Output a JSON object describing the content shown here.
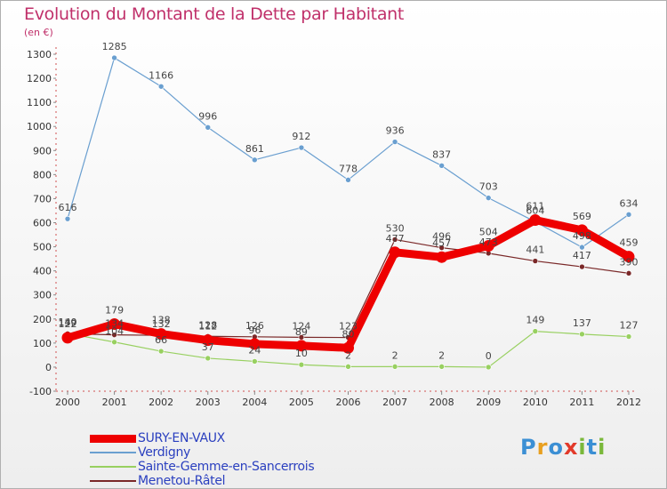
{
  "title": "Evolution du Montant de la Dette par Habitant",
  "unit_label": "(en €)",
  "logo": {
    "text": "Proxiti",
    "letters": [
      "P",
      "r",
      "o",
      "x",
      "i",
      "t",
      "i"
    ],
    "colors": [
      "#3b8fd4",
      "#e8a020",
      "#3b8fd4",
      "#e23a2a",
      "#7ab83a",
      "#3b8fd4",
      "#7ab83a"
    ]
  },
  "chart_data": {
    "type": "line",
    "title": "Evolution du Montant de la Dette par Habitant",
    "ylabel": "(en €)",
    "xlabel": "",
    "x": [
      "2000",
      "2001",
      "2002",
      "2003",
      "2004",
      "2005",
      "2006",
      "2007",
      "2008",
      "2009",
      "2010",
      "2011",
      "2012"
    ],
    "ylim": [
      -100,
      1300
    ],
    "yticks": [
      -100,
      0,
      100,
      200,
      300,
      400,
      500,
      600,
      700,
      800,
      900,
      1000,
      1100,
      1200,
      1300
    ],
    "grid": false,
    "legend_position": "bottom-left",
    "series": [
      {
        "name": "SURY-EN-VAUX",
        "color": "#ee0000",
        "width": 9,
        "values": [
          122,
          179,
          138,
          112,
          96,
          89,
          80,
          477,
          457,
          504,
          611,
          569,
          459
        ],
        "labels": [
          "122",
          "179",
          "138",
          "112",
          "96",
          "89",
          "80",
          "477",
          "457",
          "504",
          "611",
          "569",
          "459"
        ]
      },
      {
        "name": "Verdigny",
        "color": "#6a9fd0",
        "width": 1.2,
        "values": [
          616,
          1285,
          1166,
          996,
          861,
          912,
          778,
          936,
          837,
          703,
          604,
          498,
          634
        ],
        "labels": [
          "616",
          "1285",
          "1166",
          "996",
          "861",
          "912",
          "778",
          "936",
          "837",
          "703",
          "604",
          "498",
          "634"
        ]
      },
      {
        "name": "Sainte-Gemme-en-Sancerrois",
        "color": "#98d060",
        "width": 1.2,
        "values": [
          140,
          104,
          66,
          37,
          24,
          10,
          2,
          2,
          2,
          0,
          149,
          137,
          127
        ],
        "labels": [
          "140",
          "104",
          "66",
          "37",
          "24",
          "10",
          "2",
          "2",
          "2",
          "0",
          "149",
          "137",
          "127"
        ]
      },
      {
        "name": "Menetou-Râtel",
        "color": "#7a2828",
        "width": 1.2,
        "values": [
          139,
          134,
          132,
          128,
          126,
          124,
          123,
          530,
          496,
          473,
          441,
          417,
          390
        ],
        "labels": [
          "139",
          "134",
          "132",
          "128",
          "126",
          "124",
          "123",
          "530",
          "496",
          "473",
          "441",
          "417",
          "390"
        ]
      }
    ]
  }
}
